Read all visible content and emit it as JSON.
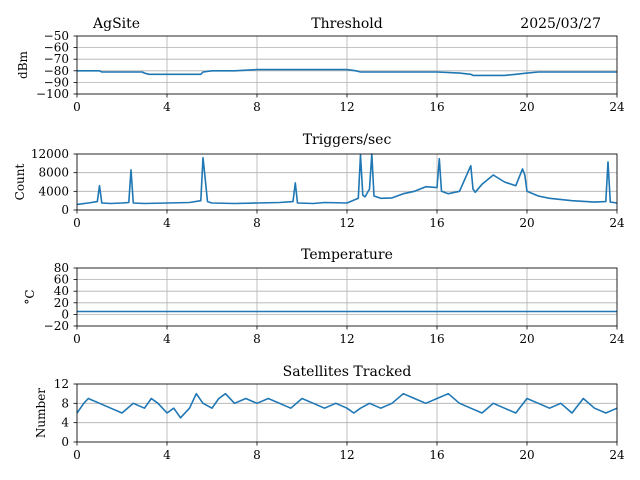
{
  "header": {
    "site": "AgSite",
    "date": "2025/03/27"
  },
  "chart_data": [
    {
      "type": "line",
      "title": "Threshold",
      "ylabel": "dBm",
      "xlim": [
        0,
        24
      ],
      "ylim": [
        -100,
        -50
      ],
      "xticks": [
        "0",
        "4",
        "8",
        "12",
        "16",
        "20",
        "24"
      ],
      "yticks": [
        "−100",
        "−90",
        "−80",
        "−70",
        "−60",
        "−50"
      ],
      "ytick_values": [
        -100,
        -90,
        -80,
        -70,
        -60,
        -50
      ],
      "grid": true,
      "color": "#1f77b4",
      "x": [
        0,
        1.0,
        1.1,
        2.9,
        3.0,
        3.2,
        4.0,
        5.0,
        5.5,
        5.6,
        6.0,
        7.0,
        8.0,
        9.0,
        10.0,
        11.0,
        12.0,
        12.4,
        12.6,
        13.0,
        14.0,
        15.0,
        16.0,
        17.0,
        17.5,
        17.6,
        18.0,
        18.5,
        19.0,
        19.5,
        20.0,
        20.5,
        21.0,
        22.0,
        23.0,
        24.0
      ],
      "y": [
        -80,
        -80,
        -81,
        -81,
        -82,
        -83,
        -83,
        -83,
        -83,
        -81,
        -80,
        -80,
        -79,
        -79,
        -79,
        -79,
        -79,
        -80,
        -81,
        -81,
        -81,
        -81,
        -81,
        -82,
        -83,
        -84,
        -84,
        -84,
        -84,
        -83,
        -82,
        -81,
        -81,
        -81,
        -81,
        -81
      ]
    },
    {
      "type": "line",
      "title": "Triggers/sec",
      "ylabel": "Count",
      "xlim": [
        0,
        24
      ],
      "ylim": [
        0,
        12000
      ],
      "xticks": [
        "0",
        "4",
        "8",
        "12",
        "16",
        "20",
        "24"
      ],
      "yticks": [
        "0",
        "4000",
        "8000",
        "12000"
      ],
      "ytick_values": [
        0,
        4000,
        8000,
        12000
      ],
      "grid": true,
      "color": "#1f77b4",
      "x": [
        0,
        0.5,
        0.9,
        1.0,
        1.1,
        1.5,
        2.0,
        2.3,
        2.4,
        2.5,
        3.0,
        4.0,
        5.0,
        5.5,
        5.6,
        5.7,
        5.8,
        6.0,
        7.0,
        8.0,
        9.0,
        9.6,
        9.7,
        9.8,
        10.5,
        11.0,
        12.0,
        12.5,
        12.6,
        12.7,
        12.8,
        13.0,
        13.1,
        13.2,
        13.5,
        14.0,
        14.5,
        15.0,
        15.5,
        16.0,
        16.1,
        16.2,
        16.5,
        17.0,
        17.5,
        17.6,
        17.7,
        18.0,
        18.5,
        19.0,
        19.5,
        19.8,
        19.9,
        20.0,
        20.5,
        21.0,
        22.0,
        23.0,
        23.5,
        23.6,
        23.7,
        24.0
      ],
      "y": [
        1200,
        1500,
        1800,
        5200,
        1500,
        1400,
        1500,
        1600,
        8600,
        1500,
        1400,
        1500,
        1600,
        2000,
        11200,
        6500,
        1800,
        1500,
        1400,
        1500,
        1600,
        1800,
        5800,
        1500,
        1400,
        1600,
        1500,
        2500,
        11800,
        3200,
        2800,
        4500,
        12000,
        3000,
        2500,
        2600,
        3500,
        4000,
        5000,
        4800,
        11000,
        4000,
        3500,
        4000,
        9500,
        4500,
        3800,
        5500,
        7500,
        6000,
        5200,
        8800,
        7500,
        4000,
        3000,
        2500,
        2000,
        1700,
        1800,
        10300,
        1700,
        1500
      ]
    },
    {
      "type": "line",
      "title": "Temperature",
      "ylabel": "°C",
      "xlim": [
        0,
        24
      ],
      "ylim": [
        -20,
        80
      ],
      "xticks": [
        "0",
        "4",
        "8",
        "12",
        "16",
        "20",
        "24"
      ],
      "yticks": [
        "−20",
        "0",
        "20",
        "40",
        "60",
        "80"
      ],
      "ytick_values": [
        -20,
        0,
        20,
        40,
        60,
        80
      ],
      "grid": true,
      "color": "#1f77b4",
      "x": [
        0,
        24
      ],
      "y": [
        5,
        5
      ]
    },
    {
      "type": "line",
      "title": "Satellites Tracked",
      "ylabel": "Number",
      "xlim": [
        0,
        24
      ],
      "ylim": [
        0,
        12
      ],
      "xticks": [
        "0",
        "4",
        "8",
        "12",
        "16",
        "20",
        "24"
      ],
      "yticks": [
        "0",
        "4",
        "8",
        "12"
      ],
      "ytick_values": [
        0,
        4,
        8,
        12
      ],
      "grid": true,
      "color": "#1f77b4",
      "x": [
        0,
        0.3,
        0.5,
        1.0,
        1.5,
        2.0,
        2.5,
        3.0,
        3.3,
        3.6,
        4.0,
        4.3,
        4.6,
        5.0,
        5.3,
        5.6,
        6.0,
        6.3,
        6.6,
        7.0,
        7.5,
        8.0,
        8.5,
        9.0,
        9.5,
        10.0,
        10.5,
        11.0,
        11.5,
        12.0,
        12.3,
        12.6,
        13.0,
        13.5,
        14.0,
        14.5,
        15.0,
        15.5,
        16.0,
        16.5,
        17.0,
        17.5,
        18.0,
        18.5,
        19.0,
        19.5,
        20.0,
        20.5,
        21.0,
        21.5,
        22.0,
        22.5,
        23.0,
        23.5,
        24.0
      ],
      "y": [
        6,
        8,
        9,
        8,
        7,
        6,
        8,
        7,
        9,
        8,
        6,
        7,
        5,
        7,
        10,
        8,
        7,
        9,
        10,
        8,
        9,
        8,
        9,
        8,
        7,
        9,
        8,
        7,
        8,
        7,
        6,
        7,
        8,
        7,
        8,
        10,
        9,
        8,
        9,
        10,
        8,
        7,
        6,
        8,
        7,
        6,
        9,
        8,
        7,
        8,
        6,
        9,
        7,
        6,
        7
      ]
    }
  ]
}
